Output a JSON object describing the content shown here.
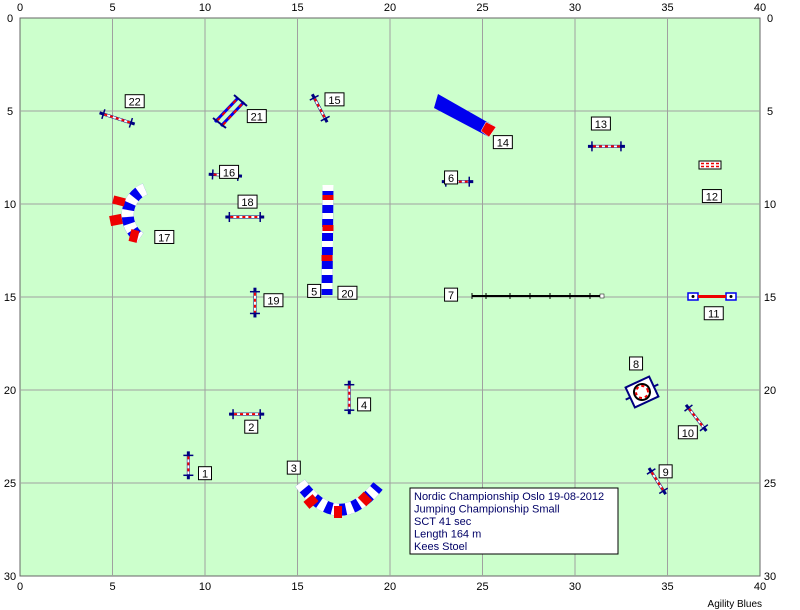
{
  "course": {
    "info_lines": [
      "Nordic Championship Oslo 19-08-2012",
      "Jumping Championship Small",
      "SCT 41 sec",
      "Length 164 m",
      "Kees Stoel"
    ],
    "credit": "Agility Blues",
    "x_ticks": [
      "0",
      "5",
      "10",
      "15",
      "20",
      "25",
      "30",
      "35",
      "40"
    ],
    "y_ticks": [
      "0",
      "5",
      "10",
      "15",
      "20",
      "25",
      "30"
    ],
    "colors": {
      "field": "#ccffcc",
      "grid": "#a0a0a0",
      "blue": "#0000ee",
      "red": "#ee0000",
      "navy": "#000080"
    },
    "numbers": [
      {
        "label": "1",
        "x": 10,
        "y": 24.5
      },
      {
        "label": "2",
        "x": 12.5,
        "y": 22
      },
      {
        "label": "3",
        "x": 14.8,
        "y": 24.2
      },
      {
        "label": "4",
        "x": 18.6,
        "y": 20.8
      },
      {
        "label": "5",
        "x": 15.9,
        "y": 14.7
      },
      {
        "label": "6",
        "x": 23.3,
        "y": 8.6
      },
      {
        "label": "7",
        "x": 23.3,
        "y": 14.9
      },
      {
        "label": "8",
        "x": 33.3,
        "y": 18.6
      },
      {
        "label": "9",
        "x": 34.9,
        "y": 24.4
      },
      {
        "label": "10",
        "x": 36.1,
        "y": 22.3
      },
      {
        "label": "11",
        "x": 37.5,
        "y": 15.9
      },
      {
        "label": "12",
        "x": 37.4,
        "y": 9.6
      },
      {
        "label": "13",
        "x": 31.4,
        "y": 5.7
      },
      {
        "label": "14",
        "x": 26.1,
        "y": 6.7
      },
      {
        "label": "15",
        "x": 17,
        "y": 4.4
      },
      {
        "label": "16",
        "x": 11.3,
        "y": 8.3
      },
      {
        "label": "17",
        "x": 7.8,
        "y": 11.8
      },
      {
        "label": "18",
        "x": 12.3,
        "y": 9.9
      },
      {
        "label": "19",
        "x": 13.7,
        "y": 15.2
      },
      {
        "label": "20",
        "x": 17.7,
        "y": 14.8
      },
      {
        "label": "21",
        "x": 12.8,
        "y": 5.3
      },
      {
        "label": "22",
        "x": 6.2,
        "y": 4.5
      }
    ],
    "jumps": [
      {
        "name": "jump-1",
        "x1": 9.1,
        "y1": 23.3,
        "x2": 9.1,
        "y2": 24.8
      },
      {
        "name": "jump-2",
        "x1": 11.3,
        "y1": 21.3,
        "x2": 13.2,
        "y2": 21.3
      },
      {
        "name": "jump-4",
        "x1": 17.8,
        "y1": 19.5,
        "x2": 17.8,
        "y2": 21.3
      },
      {
        "name": "jump-6",
        "x1": 22.8,
        "y1": 8.8,
        "x2": 24.5,
        "y2": 8.8
      },
      {
        "name": "jump-9",
        "x1": 34,
        "y1": 24.2,
        "x2": 34.9,
        "y2": 25.6
      },
      {
        "name": "jump-10",
        "x1": 36,
        "y1": 20.8,
        "x2": 37.1,
        "y2": 22.2
      },
      {
        "name": "jump-13",
        "x1": 30.7,
        "y1": 6.9,
        "x2": 32.7,
        "y2": 6.9
      },
      {
        "name": "jump-15",
        "x1": 15.8,
        "y1": 4.1,
        "x2": 16.6,
        "y2": 5.6
      },
      {
        "name": "jump-16",
        "x1": 10.2,
        "y1": 8.4,
        "x2": 12,
        "y2": 8.5
      },
      {
        "name": "jump-18",
        "x1": 11.1,
        "y1": 10.7,
        "x2": 13.2,
        "y2": 10.7
      },
      {
        "name": "jump-19",
        "x1": 12.7,
        "y1": 14.5,
        "x2": 12.7,
        "y2": 16.1
      },
      {
        "name": "jump-22",
        "x1": 4.3,
        "y1": 5.1,
        "x2": 6.2,
        "y2": 5.7
      }
    ]
  }
}
